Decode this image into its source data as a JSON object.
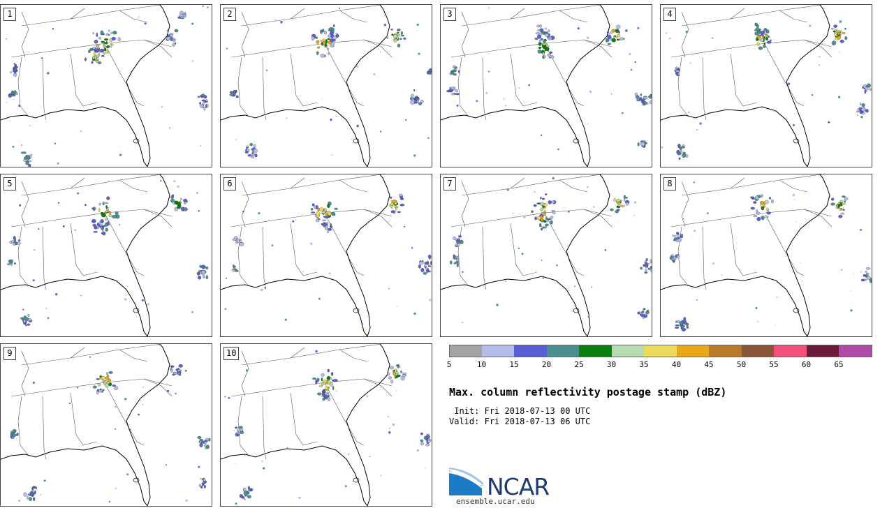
{
  "map": {
    "title": "Max. column reflectivity postage stamp (dBZ)",
    "init_label": " Init:",
    "init_value": "Fri 2018-07-13 00 UTC",
    "valid_label": "Valid:",
    "valid_value": "Fri 2018-07-13 06 UTC",
    "members": [
      "1",
      "2",
      "3",
      "4",
      "5",
      "6",
      "7",
      "8",
      "9",
      "10"
    ],
    "colorbar": {
      "ticks": [
        "5",
        "10",
        "15",
        "20",
        "25",
        "30",
        "35",
        "40",
        "45",
        "50",
        "55",
        "60",
        "65"
      ],
      "colors": [
        "#a3a3a3",
        "#b4bcea",
        "#5a5fd6",
        "#4a9090",
        "#0b8010",
        "#b8dab0",
        "#eedb5e",
        "#e8a619",
        "#b87a2a",
        "#8b5538",
        "#f0507a",
        "#6b1a3a",
        "#b04aa8"
      ]
    },
    "logo": {
      "name": "NCAR",
      "url": "ensemble.ucar.edu"
    }
  }
}
